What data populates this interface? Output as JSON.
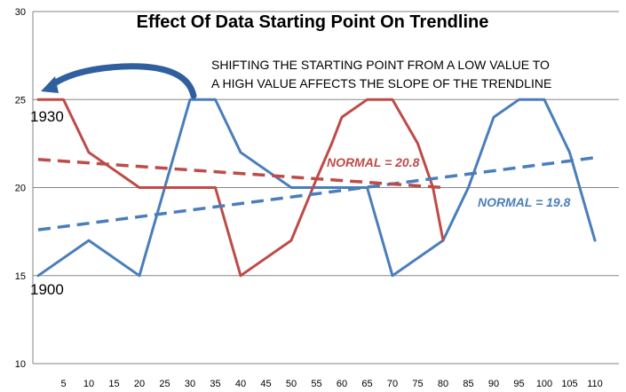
{
  "chart_data": {
    "type": "line",
    "title": "Effect Of Data Starting Point On Trendline",
    "ylim": [
      10,
      30
    ],
    "yticks": [
      10,
      15,
      20,
      25,
      30
    ],
    "xlim": [
      0,
      112
    ],
    "xticks": [
      5,
      10,
      15,
      20,
      25,
      30,
      35,
      40,
      45,
      50,
      55,
      60,
      65,
      70,
      75,
      80,
      85,
      90,
      95,
      100,
      105,
      110
    ],
    "grid": "horizontal",
    "series": [
      {
        "name": "1900",
        "color": "#4a7ebb",
        "points": [
          [
            0,
            15
          ],
          [
            10,
            17
          ],
          [
            20,
            15
          ],
          [
            30,
            25
          ],
          [
            35,
            25
          ],
          [
            40,
            22
          ],
          [
            50,
            20
          ],
          [
            55,
            20
          ],
          [
            65,
            20
          ],
          [
            70,
            15
          ],
          [
            80,
            17
          ],
          [
            85,
            20
          ],
          [
            90,
            24
          ],
          [
            95,
            25
          ],
          [
            100,
            25
          ],
          [
            105,
            22
          ],
          [
            110,
            17
          ]
        ],
        "trend": {
          "x": [
            0,
            110
          ],
          "y": [
            17.6,
            21.7
          ]
        },
        "normal_label": "NORMAL = 19.8"
      },
      {
        "name": "1930",
        "color": "#be4b48",
        "points": [
          [
            0,
            25
          ],
          [
            5,
            25
          ],
          [
            10,
            22
          ],
          [
            20,
            20
          ],
          [
            25,
            20
          ],
          [
            35,
            20
          ],
          [
            40,
            15
          ],
          [
            50,
            17
          ],
          [
            55,
            20.5
          ],
          [
            58,
            22.5
          ],
          [
            60,
            24
          ],
          [
            65,
            25
          ],
          [
            70,
            25
          ],
          [
            75,
            22.5
          ],
          [
            78,
            20
          ],
          [
            80,
            17
          ]
        ],
        "trend": {
          "x": [
            0,
            80
          ],
          "y": [
            21.6,
            20.0
          ]
        },
        "normal_label": "NORMAL = 20.8"
      }
    ],
    "annotations": [
      {
        "text": "SHIFTING THE STARTING POINT FROM A LOW VALUE TO",
        "kind": "note"
      },
      {
        "text": "A HIGH VALUE AFFECTS THE SLOPE OF THE TRENDLINE",
        "kind": "note"
      }
    ],
    "arrow_color": "#2f5f9e"
  }
}
